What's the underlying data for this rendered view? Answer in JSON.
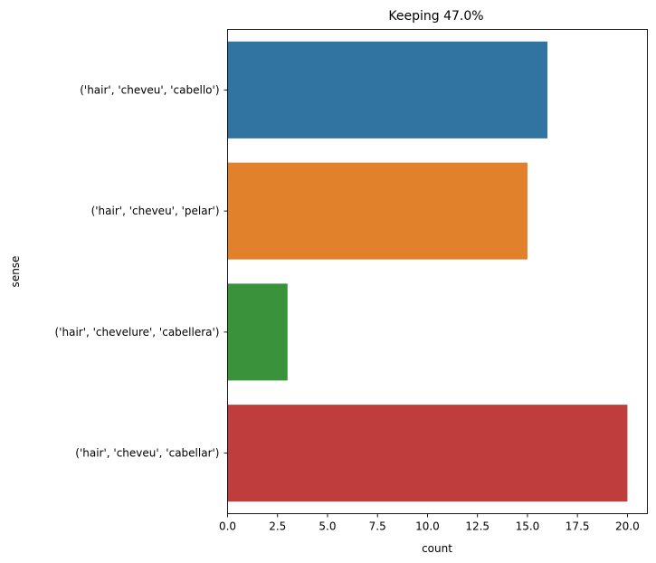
{
  "chart_data": {
    "type": "bar",
    "orientation": "horizontal",
    "title": "Keeping 47.0%",
    "xlabel": "count",
    "ylabel": "sense",
    "xlim": [
      0,
      21.0
    ],
    "xticks": [
      0.0,
      2.5,
      5.0,
      7.5,
      10.0,
      12.5,
      15.0,
      17.5,
      20.0
    ],
    "xtick_labels": [
      "0.0",
      "2.5",
      "5.0",
      "7.5",
      "10.0",
      "12.5",
      "15.0",
      "17.5",
      "20.0"
    ],
    "categories": [
      "('hair', 'cheveu', 'cabello')",
      "('hair', 'cheveu', 'pelar')",
      "('hair', 'chevelure', 'cabellera')",
      "('hair', 'cheveu', 'cabellar')"
    ],
    "values": [
      16,
      15,
      3,
      20
    ],
    "colors": [
      "#3274a1",
      "#e1812c",
      "#3a923a",
      "#c03d3e"
    ],
    "grid": false,
    "legend": "none"
  }
}
